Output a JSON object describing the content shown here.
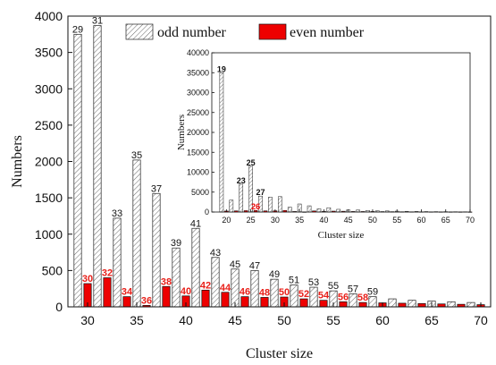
{
  "chart_data": [
    {
      "type": "bar",
      "title": "",
      "xlabel": "Cluster size",
      "ylabel": "Numbers",
      "xlim": [
        28,
        71
      ],
      "ylim": [
        0,
        4000
      ],
      "xticks": [
        "30",
        "35",
        "40",
        "45",
        "50",
        "55",
        "60",
        "65",
        "70"
      ],
      "yticks": [
        "0",
        "500",
        "1000",
        "1500",
        "2000",
        "2500",
        "3000",
        "3500",
        "4000"
      ],
      "legend_position": "top-right",
      "series": [
        {
          "name": "odd number",
          "style": "hatched",
          "color": "#ffffff",
          "x": [
            29,
            31,
            33,
            35,
            37,
            39,
            41,
            43,
            45,
            47,
            49,
            51,
            53,
            55,
            57,
            59,
            61,
            63,
            65,
            67,
            69
          ],
          "values": [
            3750,
            3870,
            1220,
            2020,
            1560,
            810,
            1080,
            680,
            520,
            500,
            380,
            300,
            270,
            220,
            180,
            140,
            110,
            90,
            80,
            70,
            60
          ],
          "labels": [
            "29",
            "31",
            "33",
            "35",
            "37",
            "39",
            "41",
            "43",
            "45",
            "47",
            "49",
            "51",
            "53",
            "55",
            "57",
            "59",
            "",
            "",
            "",
            "",
            ""
          ]
        },
        {
          "name": "even number",
          "color": "#ee0000",
          "label_color": "#e8201a",
          "x": [
            30,
            32,
            34,
            36,
            38,
            40,
            42,
            44,
            46,
            48,
            50,
            52,
            54,
            56,
            58,
            60,
            62,
            64,
            66,
            68,
            70
          ],
          "values": [
            320,
            400,
            140,
            20,
            280,
            150,
            230,
            200,
            140,
            130,
            135,
            110,
            90,
            70,
            60,
            55,
            50,
            45,
            40,
            35,
            30
          ],
          "labels": [
            "30",
            "32",
            "34",
            "36",
            "38",
            "40",
            "42",
            "44",
            "46",
            "48",
            "50",
            "52",
            "54",
            "56",
            "58",
            "",
            "",
            "",
            "",
            "",
            ""
          ]
        }
      ]
    },
    {
      "type": "bar",
      "title": "",
      "xlabel": "Cluster size",
      "ylabel": "Numbers",
      "xlim": [
        17,
        70
      ],
      "ylim": [
        0,
        40000
      ],
      "xticks": [
        "20",
        "25",
        "30",
        "35",
        "40",
        "45",
        "50",
        "55",
        "60",
        "65",
        "70"
      ],
      "yticks": [
        "0",
        "5000",
        "10000",
        "15000",
        "20000",
        "25000",
        "30000",
        "35000",
        "40000"
      ],
      "series": [
        {
          "name": "odd number",
          "style": "hatched",
          "x": [
            19,
            21,
            23,
            25,
            27,
            29,
            31,
            33,
            35,
            37,
            39,
            41,
            43,
            45,
            47,
            49,
            51,
            53,
            55,
            57,
            59,
            61,
            63,
            65,
            67,
            69
          ],
          "values": [
            35000,
            3000,
            7000,
            11500,
            4000,
            3750,
            3870,
            1220,
            2020,
            1560,
            810,
            1080,
            680,
            520,
            500,
            380,
            300,
            270,
            220,
            180,
            140,
            110,
            90,
            80,
            70,
            60
          ],
          "labels": [
            "19",
            "",
            "23",
            "25",
            "27",
            "",
            "",
            "",
            "",
            "",
            "",
            "",
            "",
            "",
            "",
            "",
            "",
            "",
            "",
            "",
            "",
            "",
            "",
            "",
            "",
            ""
          ]
        },
        {
          "name": "even number",
          "color": "#ee0000",
          "x": [
            20,
            22,
            24,
            26,
            28,
            30,
            32,
            34,
            36,
            38,
            40,
            42,
            44,
            46,
            48,
            50,
            52,
            54,
            56,
            58,
            60,
            62,
            64,
            66,
            68,
            70
          ],
          "values": [
            250,
            300,
            350,
            400,
            300,
            320,
            400,
            140,
            20,
            280,
            150,
            230,
            200,
            140,
            130,
            135,
            110,
            90,
            70,
            60,
            55,
            50,
            45,
            40,
            35,
            30
          ],
          "labels": [
            "",
            "",
            "",
            "26",
            "",
            "",
            "",
            "",
            "",
            "",
            "",
            "",
            "",
            "",
            "",
            "",
            "",
            "",
            "",
            "",
            "",
            "",
            "",
            "",
            "",
            ""
          ]
        }
      ]
    }
  ]
}
